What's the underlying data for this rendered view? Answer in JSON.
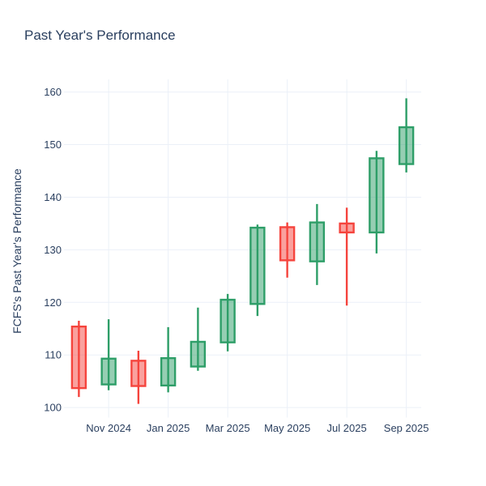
{
  "page": {
    "background": "#ffffff"
  },
  "chart_data": {
    "type": "candlestick",
    "title": "Past Year's Performance",
    "ylabel": "FCFS's Past Year's Performance",
    "xlabel": "",
    "grid": true,
    "legend": false,
    "ylim": [
      98.1,
      162.4
    ],
    "y_ticks": [
      100,
      110,
      120,
      130,
      140,
      150,
      160
    ],
    "x_ticks": [
      {
        "index": 1,
        "label": "Nov 2024"
      },
      {
        "index": 3,
        "label": "Jan 2025"
      },
      {
        "index": 5,
        "label": "Mar 2025"
      },
      {
        "index": 7,
        "label": "May 2025"
      },
      {
        "index": 9,
        "label": "Jul 2025"
      },
      {
        "index": 11,
        "label": "Sep 2025"
      }
    ],
    "candles": [
      {
        "x": "Oct 2024",
        "open": 115.4,
        "high": 116.5,
        "low": 102.0,
        "close": 103.7
      },
      {
        "x": "Nov 2024",
        "open": 104.4,
        "high": 116.8,
        "low": 103.3,
        "close": 109.3
      },
      {
        "x": "Dec 2024",
        "open": 108.9,
        "high": 110.8,
        "low": 100.7,
        "close": 104.1
      },
      {
        "x": "Jan 2025",
        "open": 104.2,
        "high": 115.3,
        "low": 102.9,
        "close": 109.4
      },
      {
        "x": "Feb 2025",
        "open": 107.8,
        "high": 119.0,
        "low": 107.0,
        "close": 112.5
      },
      {
        "x": "Mar 2025",
        "open": 112.4,
        "high": 121.6,
        "low": 110.7,
        "close": 120.5
      },
      {
        "x": "Apr 2025",
        "open": 119.7,
        "high": 134.8,
        "low": 117.4,
        "close": 134.2
      },
      {
        "x": "May 2025",
        "open": 134.3,
        "high": 135.2,
        "low": 124.7,
        "close": 128.0
      },
      {
        "x": "Jun 2025",
        "open": 127.8,
        "high": 138.7,
        "low": 123.3,
        "close": 135.2
      },
      {
        "x": "Jul 2025",
        "open": 135.0,
        "high": 138.0,
        "low": 119.4,
        "close": 133.3
      },
      {
        "x": "Aug 2025",
        "open": 133.3,
        "high": 148.8,
        "low": 129.3,
        "close": 147.4
      },
      {
        "x": "Sep 2025",
        "open": 146.3,
        "high": 158.8,
        "low": 144.7,
        "close": 153.3
      }
    ],
    "colors": {
      "increasing_line": "#2E9E68",
      "increasing_fill": "rgba(46,158,104,0.5)",
      "decreasing_line": "#F5443D",
      "decreasing_fill": "rgba(245,68,61,0.5)",
      "grid": "#EBF0F8",
      "text": "#2a3f5f",
      "background": "#FFFFFF"
    }
  }
}
